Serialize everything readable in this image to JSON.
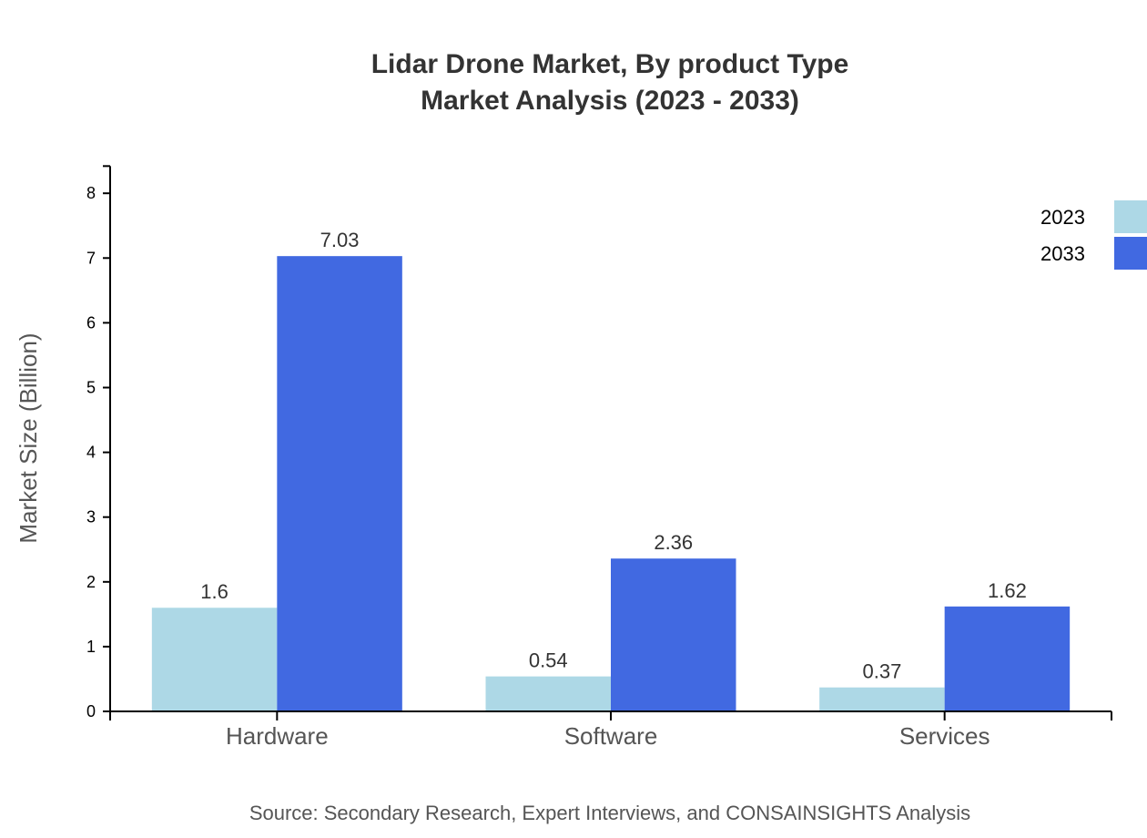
{
  "chart_data": {
    "type": "bar",
    "title": [
      "Lidar Drone Market, By product Type",
      "Market Analysis (2023 - 2033)"
    ],
    "xlabel": "",
    "ylabel": "Market Size (Billion)",
    "ylim": [
      0,
      8.42
    ],
    "yticks": [
      0,
      1,
      2,
      3,
      4,
      5,
      6,
      7,
      8
    ],
    "categories": [
      "Hardware",
      "Software",
      "Services"
    ],
    "series": [
      {
        "name": "2023",
        "color": "#add8e6",
        "values": [
          1.6,
          0.54,
          0.37
        ],
        "labels": [
          "1.6",
          "0.54",
          "0.37"
        ]
      },
      {
        "name": "2033",
        "color": "#4169e1",
        "values": [
          7.03,
          2.36,
          1.62
        ],
        "labels": [
          "7.03",
          "2.36",
          "1.62"
        ]
      }
    ],
    "legend_position": "top-right",
    "grid": false,
    "source": "Source: Secondary Research, Expert Interviews, and CONSAINSIGHTS Analysis"
  }
}
